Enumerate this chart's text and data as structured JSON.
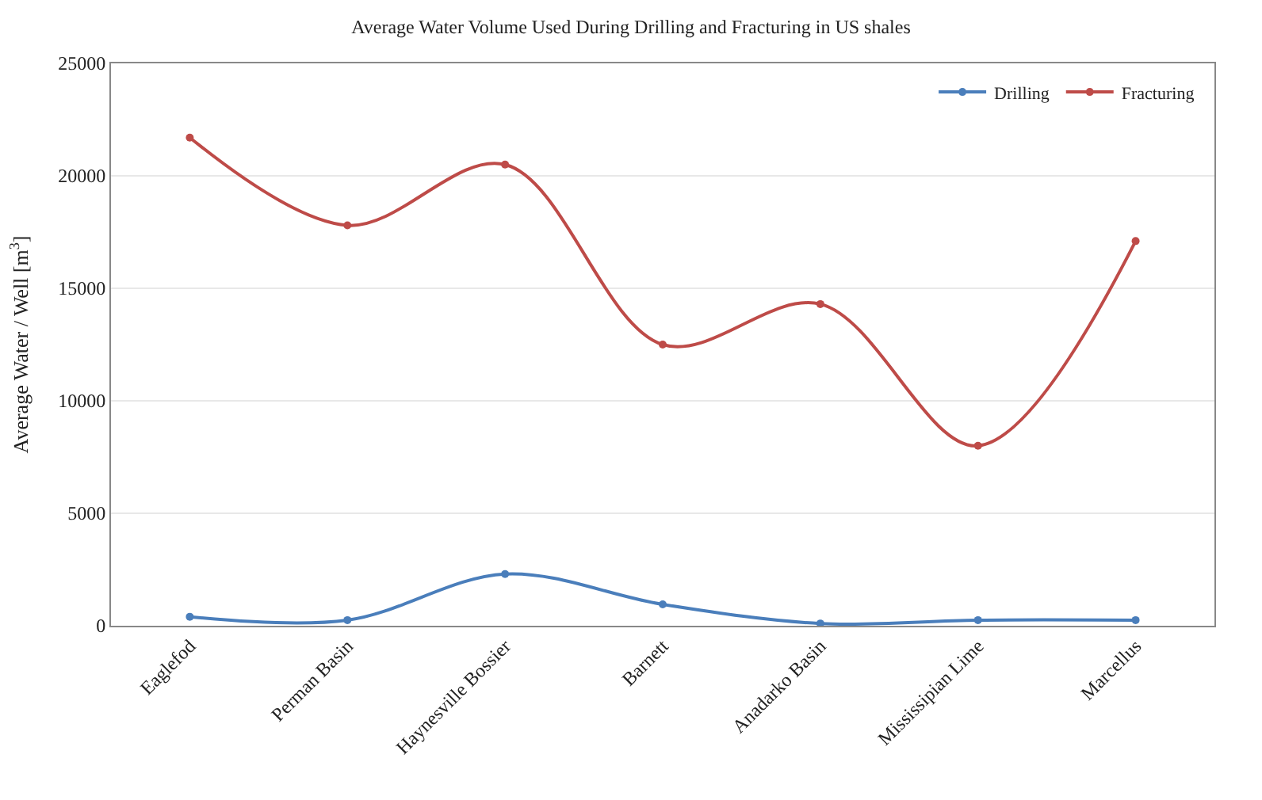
{
  "chart_data": {
    "type": "line",
    "title": "Average Water Volume Used During Drilling and Fracturing in US shales",
    "ylabel": "Average Water / Well [m$^{3}$]",
    "categories": [
      "Eaglefod",
      "Perman Basin",
      "Haynesville Bossier",
      "Barnett",
      "Anadarko Basin",
      "Mississipian Lime",
      "Marcellus"
    ],
    "series": [
      {
        "name": "Drilling",
        "color": "#4a7ebb",
        "values": [
          400,
          250,
          2300,
          950,
          100,
          250,
          250
        ]
      },
      {
        "name": "Fracturing",
        "color": "#be4b48",
        "values": [
          21700,
          17800,
          20500,
          12500,
          14300,
          8000,
          17100
        ]
      }
    ],
    "ylim": [
      0,
      25000
    ],
    "yticks": [
      0,
      5000,
      10000,
      15000,
      20000,
      25000
    ],
    "grid": "y",
    "legend": "top right",
    "marker": "circle",
    "line_style": "solid"
  }
}
